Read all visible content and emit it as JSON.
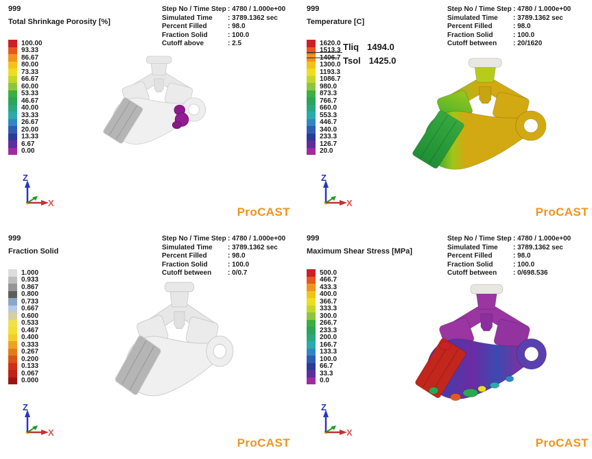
{
  "brand": {
    "name": "ProCAST",
    "color": "#F0941E"
  },
  "axis_triad": {
    "z": "Z",
    "x": "X"
  },
  "panels": [
    {
      "frame_no": "999",
      "title": "Total Shrinkage Porosity [%]",
      "info": {
        "rows": [
          {
            "label": "Step No / Time Step",
            "value": ": 4780 / 1.000e+00"
          },
          {
            "label": "Simulated Time",
            "value": ": 3789.1362 sec"
          },
          {
            "label": "Percent Filled",
            "value": ": 98.0"
          },
          {
            "label": "Fraction Solid",
            "value": ": 100.0"
          },
          {
            "label": "Cutoff above",
            "value": ": 2.5"
          }
        ]
      },
      "colorbar": {
        "labels": [
          "100.00",
          "93.33",
          "86.67",
          "80.00",
          "73.33",
          "66.67",
          "60.00",
          "53.33",
          "46.67",
          "40.00",
          "33.33",
          "26.67",
          "20.00",
          "13.33",
          "6.67",
          "0.00"
        ],
        "colors": [
          "#cb2026",
          "#e8581d",
          "#f2931d",
          "#f4c318",
          "#eede1e",
          "#c3d727",
          "#8cc63f",
          "#3cb03c",
          "#2aa559",
          "#29a77f",
          "#2aacab",
          "#2f87c4",
          "#2f5cb3",
          "#2c3a99",
          "#5e2d9e",
          "#a12aa0"
        ]
      }
    },
    {
      "frame_no": "999",
      "title": "Temperature [C]",
      "info": {
        "rows": [
          {
            "label": "Step No / Time Step",
            "value": ": 4780 / 1.000e+00"
          },
          {
            "label": "Simulated Time",
            "value": ": 3789.1362 sec"
          },
          {
            "label": "Percent Filled",
            "value": ": 98.0"
          },
          {
            "label": "Fraction Solid",
            "value": ": 100.0"
          },
          {
            "label": "Cutoff between",
            "value": ": 20/1620"
          }
        ]
      },
      "annotations": {
        "tliq_label": "Tliq",
        "tliq_value": "1494.0",
        "tsol_label": "Tsol",
        "tsol_value": "1425.0"
      },
      "colorbar": {
        "labels": [
          "1620.0",
          "1513.3",
          "1406.7",
          "1300.0",
          "1193.3",
          "1086.7",
          "980.0",
          "873.3",
          "766.7",
          "660.0",
          "553.3",
          "446.7",
          "340.0",
          "233.3",
          "126.7",
          "20.0"
        ],
        "colors": [
          "#cb2026",
          "#e8581d",
          "#f2931d",
          "#f4c318",
          "#eede1e",
          "#c3d727",
          "#8cc63f",
          "#3cb03c",
          "#2aa559",
          "#29a77f",
          "#2aacab",
          "#2f87c4",
          "#2f5cb3",
          "#2c3a99",
          "#5e2d9e",
          "#a12aa0"
        ]
      }
    },
    {
      "frame_no": "999",
      "title": "Fraction Solid",
      "info": {
        "rows": [
          {
            "label": "Step No / Time Step",
            "value": ": 4780 / 1.000e+00"
          },
          {
            "label": "Simulated Time",
            "value": ": 3789.1362 sec"
          },
          {
            "label": "Percent Filled",
            "value": ": 98.0"
          },
          {
            "label": "Fraction Solid",
            "value": ": 100.0"
          },
          {
            "label": "Cutoff between",
            "value": ": 0/0.7"
          }
        ]
      },
      "colorbar": {
        "labels": [
          "1.000",
          "0.933",
          "0.867",
          "0.800",
          "0.733",
          "0.667",
          "0.600",
          "0.533",
          "0.467",
          "0.400",
          "0.333",
          "0.267",
          "0.200",
          "0.133",
          "0.067",
          "0.000"
        ],
        "colors": [
          "#dcdcdc",
          "#bdbdbd",
          "#959595",
          "#5d5d5d",
          "#8ba6c7",
          "#b4cbe4",
          "#d6cfa0",
          "#efe14e",
          "#f2df33",
          "#f2cd27",
          "#eda320",
          "#e57a1b",
          "#db5217",
          "#d03016",
          "#c02016",
          "#9b1412"
        ]
      }
    },
    {
      "frame_no": "999",
      "title": "Maximum Shear Stress [MPa]",
      "info": {
        "rows": [
          {
            "label": "Step No / Time Step",
            "value": ": 4780 / 1.000e+00"
          },
          {
            "label": "Simulated Time",
            "value": ": 3789.1362 sec"
          },
          {
            "label": "Percent Filled",
            "value": ": 98.0"
          },
          {
            "label": "Fraction Solid",
            "value": ": 100.0"
          },
          {
            "label": "Cutoff between",
            "value": ": 0/698.536"
          }
        ]
      },
      "colorbar": {
        "labels": [
          "500.0",
          "466.7",
          "433.3",
          "400.0",
          "366.7",
          "333.3",
          "300.0",
          "266.7",
          "233.3",
          "200.0",
          "166.7",
          "133.3",
          "100.0",
          "66.7",
          "33.3",
          "0.0"
        ],
        "colors": [
          "#cb2026",
          "#e8581d",
          "#f2931d",
          "#f4c318",
          "#eede1e",
          "#c3d727",
          "#8cc63f",
          "#3cb03c",
          "#2aa559",
          "#29a77f",
          "#2aacab",
          "#2f87c4",
          "#2f5cb3",
          "#2c3a99",
          "#5e2d9e",
          "#a12aa0"
        ]
      }
    }
  ]
}
